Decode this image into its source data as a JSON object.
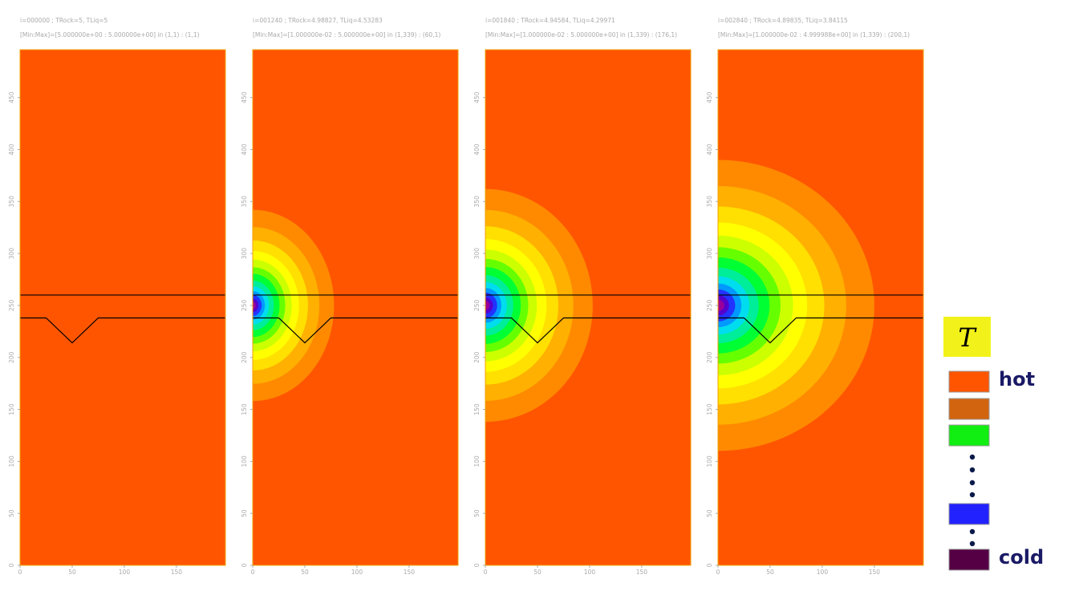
{
  "chart_data": [
    {
      "type": "contour",
      "title": "i=000000 ; TRock=5, TLiq=5",
      "subtitle": "[Min:Max]=[5.000000e+00 : 5.000000e+00] in (1,1) : (1,1)",
      "xlim": [
        0,
        197
      ],
      "ylim": [
        0,
        496
      ],
      "xticks": [
        0,
        50,
        100,
        150
      ],
      "yticks": [
        0,
        50,
        100,
        150,
        200,
        250,
        300,
        350,
        400,
        450
      ]
    },
    {
      "type": "contour",
      "title": "i=001240 ; TRock=4.98827, TLiq=4.53283",
      "subtitle": "[Min:Max]=[1.000000e-02 : 5.000000e+00] in (1,339) : (60,1)",
      "xlim": [
        0,
        197
      ],
      "ylim": [
        0,
        496
      ],
      "xticks": [
        0,
        50,
        100,
        150
      ],
      "yticks": [
        0,
        50,
        100,
        150,
        200,
        250,
        300,
        350,
        400,
        450
      ]
    },
    {
      "type": "contour",
      "title": "i=001840 ; TRock=4.94584, TLiq=4.29971",
      "subtitle": "[Min:Max]=[1.000000e-02 : 5.000000e+00] in (1,339) : (176,1)",
      "xlim": [
        0,
        197
      ],
      "ylim": [
        0,
        496
      ],
      "xticks": [
        0,
        50,
        100,
        150
      ],
      "yticks": [
        0,
        50,
        100,
        150,
        200,
        250,
        300,
        350,
        400,
        450
      ]
    },
    {
      "type": "contour",
      "title": "i=002840 ; TRock=4.89835, TLiq=3.84115",
      "subtitle": "[Min:Max]=[1.000000e-02 : 4.999988e+00] in (1,339) : (200,1)",
      "xlim": [
        0,
        197
      ],
      "ylim": [
        0,
        496
      ],
      "xticks": [
        0,
        50,
        100,
        150
      ],
      "yticks": [
        0,
        50,
        100,
        150,
        200,
        250,
        300,
        350,
        400,
        450
      ]
    }
  ],
  "legend": {
    "title": "T",
    "items": [
      {
        "label": "hot",
        "color": "#ff5500"
      },
      {
        "color": "#d2640f"
      },
      {
        "color": "#11ee11"
      },
      {
        "color": "#2222ff"
      },
      {
        "label": "cold",
        "color": "#550044"
      }
    ]
  }
}
